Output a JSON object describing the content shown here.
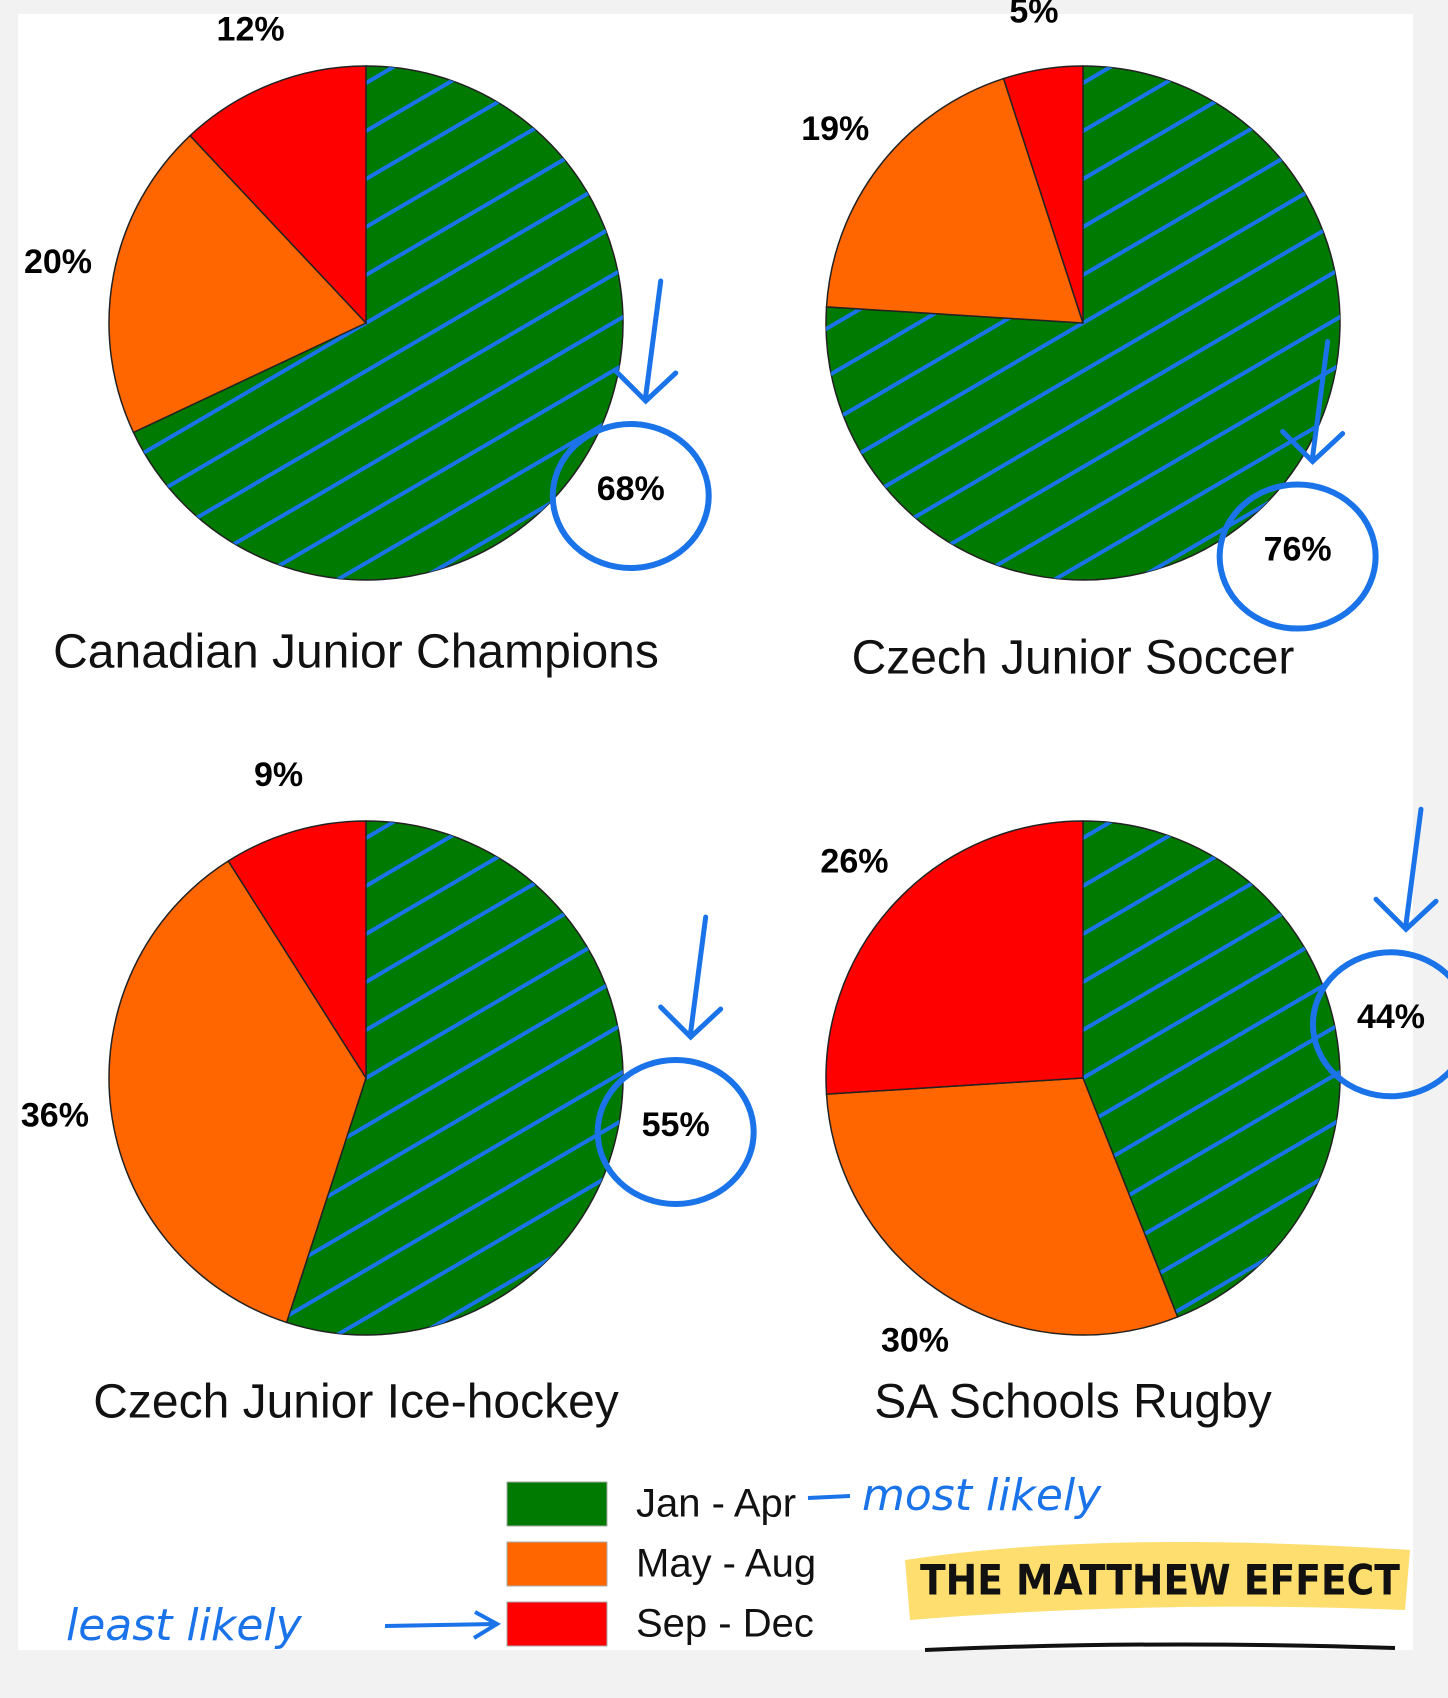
{
  "chart_data": [
    {
      "type": "pie",
      "title": "Canadian Junior Champions",
      "categories": [
        "Jan - Apr",
        "May - Aug",
        "Sep - Dec"
      ],
      "values": [
        68,
        20,
        12
      ],
      "value_labels": [
        "68%",
        "20%",
        "12%"
      ],
      "colors": [
        "#007a00",
        "#ff6600",
        "#ff0000"
      ]
    },
    {
      "type": "pie",
      "title": "Czech Junior Soccer",
      "categories": [
        "Jan - Apr",
        "May - Aug",
        "Sep - Dec"
      ],
      "values": [
        76,
        19,
        5
      ],
      "value_labels": [
        "76%",
        "19%",
        "5%"
      ],
      "colors": [
        "#007a00",
        "#ff6600",
        "#ff0000"
      ]
    },
    {
      "type": "pie",
      "title": "Czech Junior Ice-hockey",
      "categories": [
        "Jan - Apr",
        "May - Aug",
        "Sep - Dec"
      ],
      "values": [
        55,
        36,
        9
      ],
      "value_labels": [
        "55%",
        "36%",
        "9%"
      ],
      "colors": [
        "#007a00",
        "#ff6600",
        "#ff0000"
      ]
    },
    {
      "type": "pie",
      "title": "SA Schools Rugby",
      "categories": [
        "Jan - Apr",
        "May - Aug",
        "Sep - Dec"
      ],
      "values": [
        44,
        30,
        26
      ],
      "value_labels": [
        "44%",
        "30%",
        "26%"
      ],
      "colors": [
        "#007a00",
        "#ff6600",
        "#ff0000"
      ]
    }
  ],
  "annotations": {
    "most_likely": "most likely",
    "least_likely": "least likely",
    "brand": "THE MATTHEW EFFECT"
  }
}
